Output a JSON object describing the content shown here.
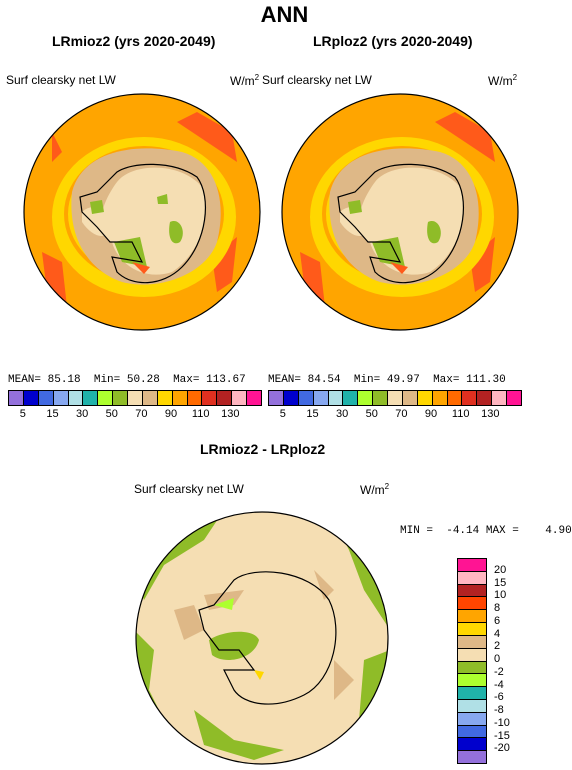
{
  "title": "ANN",
  "panels": [
    {
      "title": "LRmioz2 (yrs 2020-2049)",
      "variable": "Surf clearsky net LW",
      "units": "W/m",
      "units_sup": "2",
      "stats": {
        "mean_label": "MEAN=",
        "mean": "85.18",
        "min_label": "Min=",
        "min": "50.28",
        "max_label": "Max=",
        "max": "113.67"
      }
    },
    {
      "title": "LRploz2 (yrs 2020-2049)",
      "variable": "Surf clearsky net LW",
      "units": "W/m",
      "units_sup": "2",
      "stats": {
        "mean_label": "MEAN=",
        "mean": "84.54",
        "min_label": "Min=",
        "min": "49.97",
        "max_label": "Max=",
        "max": "111.30"
      }
    }
  ],
  "top_colorbar": {
    "colors": [
      "#9370db",
      "#0000cd",
      "#4169e1",
      "#87a8f0",
      "#b0e0e6",
      "#20b2aa",
      "#adff2f",
      "#8fbc28",
      "#f5deb3",
      "#deb887",
      "#ffd700",
      "#ffa500",
      "#ff6a00",
      "#e03020",
      "#b22222",
      "#ffb6c1",
      "#ff1493"
    ],
    "tick_labels": [
      "5",
      "15",
      "30",
      "50",
      "70",
      "90",
      "110",
      "130"
    ],
    "tick_sub": [
      "5",
      "15",
      "",
      "30",
      "",
      "50",
      "",
      "70",
      "",
      "90",
      "",
      "110",
      "",
      "130"
    ]
  },
  "diff": {
    "title": "LRmioz2 - LRploz2",
    "variable": "Surf clearsky net LW",
    "units": "W/m",
    "units_sup": "2",
    "stats": {
      "min_label": "MIN =",
      "min": "-4.14",
      "max_label": "MAX =",
      "max": "4.90"
    }
  },
  "diff_colorbar": {
    "colors": [
      "#ff1493",
      "#ffb6c1",
      "#b22222",
      "#ff4500",
      "#ffa500",
      "#ffd700",
      "#deb887",
      "#f5deb3",
      "#8fbc28",
      "#adff2f",
      "#20b2aa",
      "#b0e0e6",
      "#87a8f0",
      "#4169e1",
      "#0000cd",
      "#9370db"
    ],
    "tick_labels": [
      "20",
      "15",
      "10",
      "8",
      "6",
      "4",
      "2",
      "0",
      "-2",
      "-4",
      "-6",
      "-8",
      "-10",
      "-15",
      "-20"
    ]
  },
  "map_colors": {
    "outer": "#ffa500",
    "yellow": "#ffd700",
    "tan": "#deb887",
    "wheat": "#f5deb3",
    "green": "#8fbc28",
    "red": "#ff5a1a",
    "coast": "#000000"
  }
}
